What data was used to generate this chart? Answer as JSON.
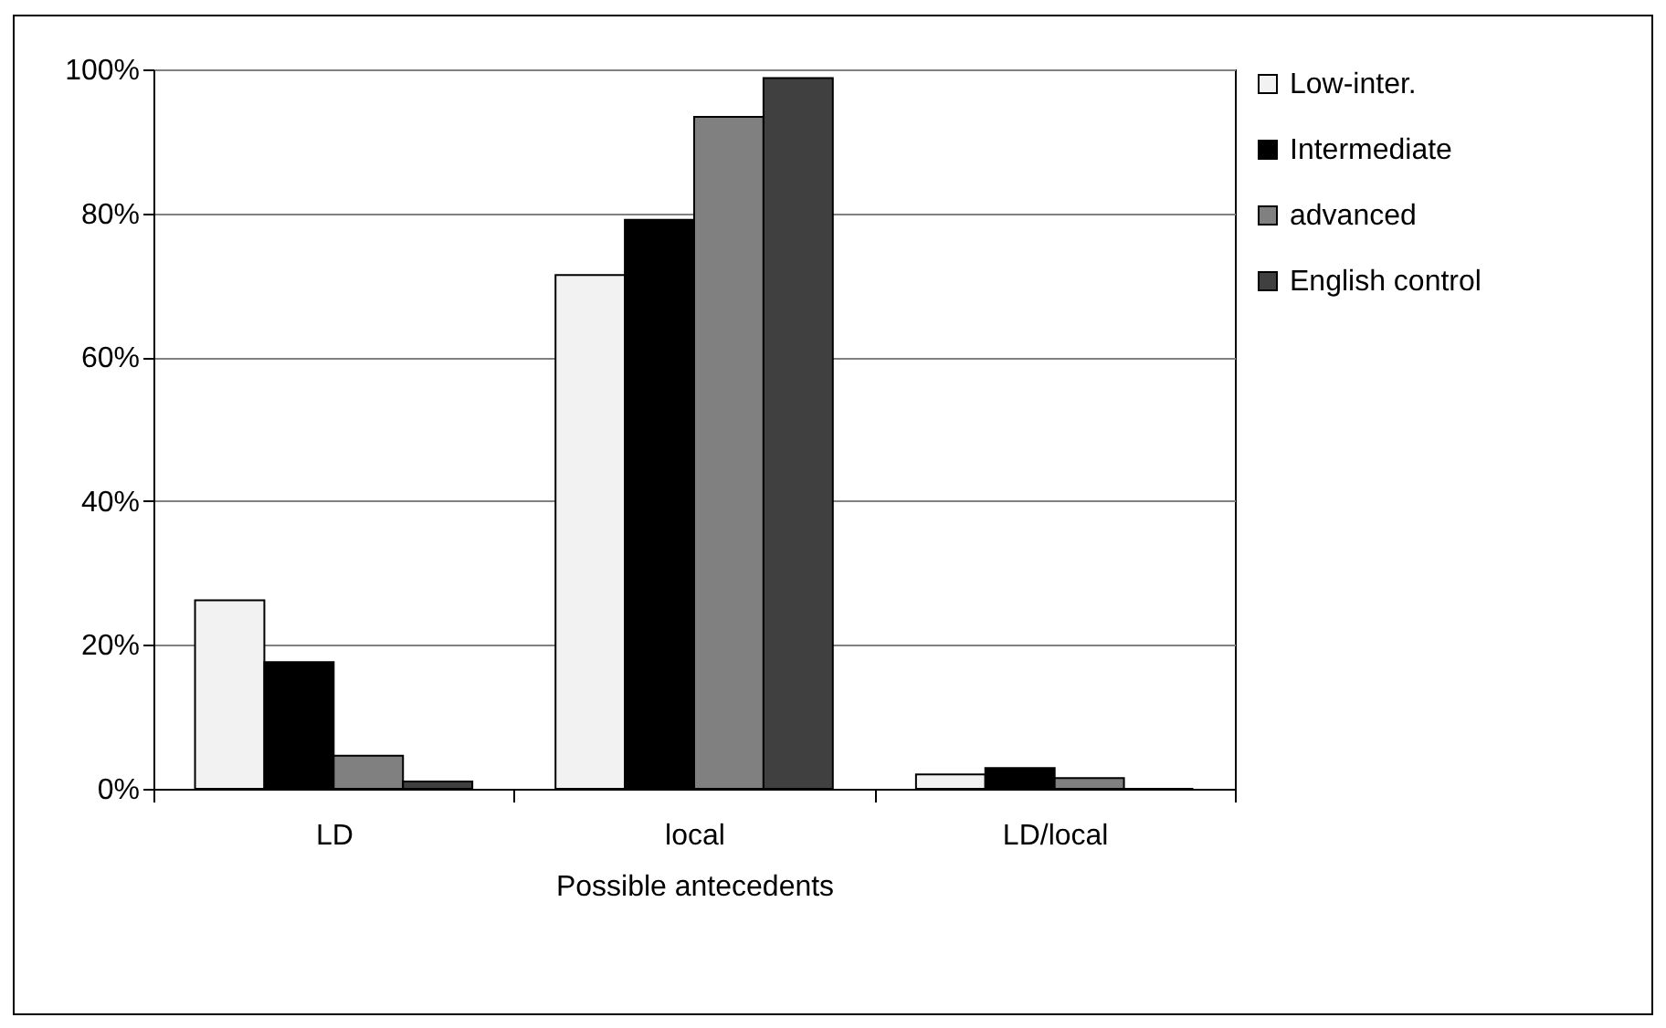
{
  "chart_data": {
    "type": "bar",
    "xlabel": "Possible antecedents",
    "categories": [
      "LD",
      "local",
      "LD/local"
    ],
    "series": [
      {
        "name": "Low-inter.",
        "color": "#f2f2f2",
        "values": [
          26.2,
          71.4,
          2.0
        ]
      },
      {
        "name": "Intermediate",
        "color": "#000000",
        "values": [
          17.6,
          79.1,
          2.9
        ]
      },
      {
        "name": "advanced",
        "color": "#808080",
        "values": [
          4.6,
          93.4,
          1.5
        ]
      },
      {
        "name": "English control",
        "color": "#404040",
        "values": [
          1.0,
          98.8,
          0
        ]
      }
    ],
    "ylim": [
      0,
      100
    ],
    "yticks": [
      {
        "value": 0,
        "label": "0%"
      },
      {
        "value": 20,
        "label": "20%"
      },
      {
        "value": 40,
        "label": "40%"
      },
      {
        "value": 60,
        "label": "60%"
      },
      {
        "value": 80,
        "label": "80%"
      },
      {
        "value": 100,
        "label": "100%"
      }
    ],
    "grid": "y",
    "legend": "right"
  }
}
